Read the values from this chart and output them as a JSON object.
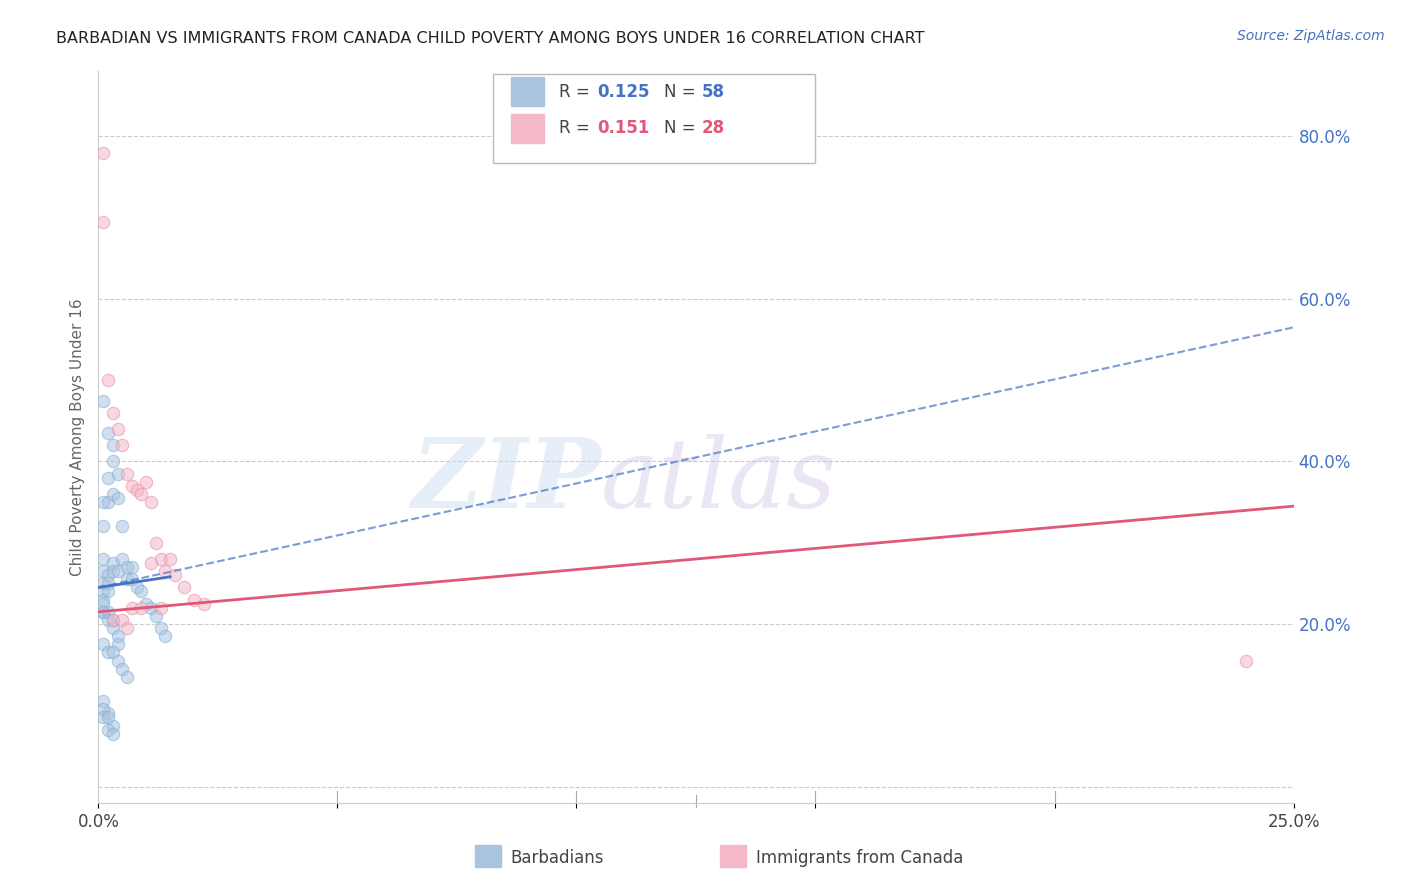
{
  "title": "BARBADIAN VS IMMIGRANTS FROM CANADA CHILD POVERTY AMONG BOYS UNDER 16 CORRELATION CHART",
  "source": "Source: ZipAtlas.com",
  "ylabel": "Child Poverty Among Boys Under 16",
  "xlim": [
    0.0,
    0.25
  ],
  "ylim": [
    -0.02,
    0.88
  ],
  "right_yticks": [
    0.0,
    0.2,
    0.4,
    0.6,
    0.8
  ],
  "right_yticklabels": [
    "",
    "20.0%",
    "40.0%",
    "60.0%",
    "80.0%"
  ],
  "xticks": [
    0.0,
    0.05,
    0.1,
    0.15,
    0.2,
    0.25
  ],
  "xticklabels": [
    "0.0%",
    "",
    "",
    "",
    "",
    "25.0%"
  ],
  "watermark_zip": "ZIP",
  "watermark_atlas": "atlas",
  "series1_label": "Barbadians",
  "series1_color": "#aac4e0",
  "series1_edge_color": "#7aafd4",
  "series1_R": "0.125",
  "series1_N": "58",
  "series1_trend_color": "#4472c4",
  "series2_label": "Immigrants from Canada",
  "series2_color": "#f4b8c8",
  "series2_edge_color": "#e888a4",
  "series2_R": "0.151",
  "series2_N": "28",
  "series2_trend_color": "#e05878",
  "legend_color": "#4472c4",
  "legend_R2_color": "#e05878",
  "background_color": "#ffffff",
  "grid_color": "#cccccc",
  "title_color": "#222222",
  "right_axis_color": "#4472c4",
  "blue_x": [
    0.001,
    0.001,
    0.001,
    0.001,
    0.001,
    0.001,
    0.001,
    0.001,
    0.001,
    0.002,
    0.002,
    0.002,
    0.002,
    0.002,
    0.002,
    0.003,
    0.003,
    0.003,
    0.003,
    0.003,
    0.004,
    0.004,
    0.004,
    0.005,
    0.005,
    0.006,
    0.006,
    0.007,
    0.007,
    0.008,
    0.009,
    0.01,
    0.011,
    0.012,
    0.013,
    0.014,
    0.001,
    0.001,
    0.002,
    0.002,
    0.003,
    0.003,
    0.004,
    0.004,
    0.001,
    0.002,
    0.003,
    0.004,
    0.005,
    0.006,
    0.001,
    0.002,
    0.003,
    0.001,
    0.001,
    0.002,
    0.002,
    0.003
  ],
  "blue_y": [
    0.475,
    0.35,
    0.32,
    0.28,
    0.265,
    0.25,
    0.24,
    0.23,
    0.215,
    0.435,
    0.38,
    0.35,
    0.26,
    0.25,
    0.24,
    0.42,
    0.4,
    0.36,
    0.275,
    0.265,
    0.385,
    0.355,
    0.265,
    0.32,
    0.28,
    0.27,
    0.255,
    0.27,
    0.255,
    0.245,
    0.24,
    0.225,
    0.22,
    0.21,
    0.195,
    0.185,
    0.225,
    0.215,
    0.215,
    0.205,
    0.205,
    0.195,
    0.185,
    0.175,
    0.175,
    0.165,
    0.165,
    0.155,
    0.145,
    0.135,
    0.105,
    0.09,
    0.075,
    0.095,
    0.085,
    0.085,
    0.07,
    0.065
  ],
  "pink_x": [
    0.001,
    0.001,
    0.002,
    0.003,
    0.004,
    0.005,
    0.006,
    0.007,
    0.008,
    0.009,
    0.01,
    0.011,
    0.012,
    0.013,
    0.014,
    0.015,
    0.016,
    0.018,
    0.02,
    0.022,
    0.24,
    0.003,
    0.005,
    0.006,
    0.007,
    0.009,
    0.011,
    0.013
  ],
  "pink_y": [
    0.78,
    0.695,
    0.5,
    0.46,
    0.44,
    0.42,
    0.385,
    0.37,
    0.365,
    0.36,
    0.375,
    0.35,
    0.3,
    0.28,
    0.265,
    0.28,
    0.26,
    0.245,
    0.23,
    0.225,
    0.155,
    0.205,
    0.205,
    0.195,
    0.22,
    0.22,
    0.275,
    0.22
  ],
  "blue_trend_x": [
    0.0,
    0.25
  ],
  "blue_trend_y": [
    0.245,
    0.565
  ],
  "pink_trend_x": [
    0.0,
    0.25
  ],
  "pink_trend_y": [
    0.215,
    0.345
  ],
  "marker_size": 80,
  "marker_alpha": 0.55
}
